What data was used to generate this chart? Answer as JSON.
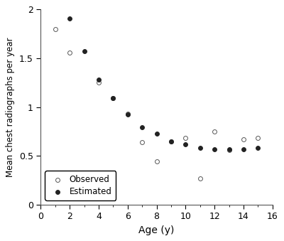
{
  "observed_x": [
    1,
    2,
    4,
    5,
    6,
    7,
    8,
    9,
    10,
    11,
    12,
    13,
    14,
    15
  ],
  "observed_y": [
    1.8,
    1.56,
    1.25,
    1.09,
    0.93,
    0.64,
    0.44,
    0.65,
    0.68,
    0.27,
    0.75,
    0.56,
    0.67,
    0.68
  ],
  "estimated_x": [
    2,
    3,
    4,
    5,
    6,
    7,
    8,
    9,
    10,
    11,
    12,
    13,
    14,
    15
  ],
  "estimated_y": [
    1.91,
    1.57,
    1.28,
    1.09,
    0.92,
    0.79,
    0.73,
    0.65,
    0.62,
    0.58,
    0.57,
    0.57,
    0.57,
    0.58
  ],
  "xlabel": "Age (y)",
  "ylabel": "Mean chest radiographs per year",
  "xlim": [
    0,
    16
  ],
  "ylim": [
    0,
    2
  ],
  "xticks": [
    0,
    2,
    4,
    6,
    8,
    10,
    12,
    14,
    16
  ],
  "yticks": [
    0,
    0.5,
    1.0,
    1.5,
    2
  ],
  "ytick_labels": [
    "0",
    "0.5",
    "1",
    "1.5",
    "2"
  ],
  "legend_observed": "Observed",
  "legend_estimated": "Estimated",
  "marker_size": 18,
  "background_color": "#ffffff"
}
